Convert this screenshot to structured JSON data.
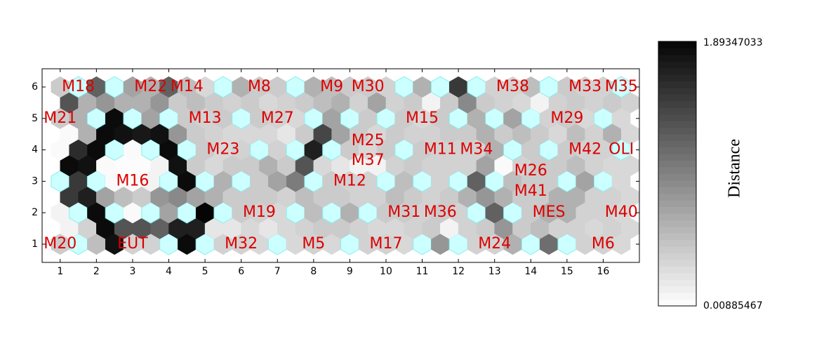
{
  "chart_data": {
    "type": "hexbin_umatrix",
    "xlim": [
      0.5,
      17
    ],
    "ylim": [
      0.42,
      6.58
    ],
    "xticks": [
      1,
      2,
      3,
      4,
      5,
      6,
      7,
      8,
      9,
      10,
      11,
      12,
      13,
      14,
      15,
      16
    ],
    "yticks": [
      1,
      2,
      3,
      4,
      5,
      6
    ],
    "clim": [
      0.00885467,
      1.89347033
    ],
    "colorbar_ticks": [
      1.89347033,
      0.00885467
    ],
    "colorbar_label": "Distance",
    "empty_color": "#ccffff",
    "empty_edge": "#88eeee",
    "label_color": "#dd0000",
    "u_matrix": [
      [
        0.4,
        null,
        0.5,
        1.8,
        0.35,
        0.35,
        null,
        1.85,
        null,
        0.35,
        0.35,
        0.3,
        null,
        0.3,
        0.35,
        0.3,
        null,
        0.35,
        0.35,
        0.3,
        null,
        0.8,
        null,
        0.35,
        0.35,
        0.6,
        null,
        1.1,
        null,
        0.35,
        0.35,
        0.3
      ],
      [
        0.1,
        0.35,
        1.85,
        1.3,
        1.3,
        1.2,
        1.7,
        1.7,
        0.2,
        0.2,
        0.3,
        0.2,
        0.3,
        0.35,
        0.4,
        0.4,
        0.35,
        0.3,
        0.3,
        0.35,
        0.4,
        0.1,
        0.35,
        0.4,
        0.8,
        0.4,
        0.5,
        0.35,
        0.35,
        0.3,
        0.35,
        0.3
      ],
      [
        0.1,
        null,
        1.85,
        null,
        0.05,
        null,
        0.7,
        null,
        1.9,
        null,
        0.4,
        0.35,
        0.3,
        null,
        0.5,
        null,
        0.6,
        null,
        0.4,
        0.4,
        0.35,
        0.4,
        0.35,
        null,
        1.2,
        null,
        0.4,
        0.6,
        0.6,
        0.35,
        0.35,
        0.3
      ],
      [
        1.5,
        1.7,
        0.7,
        0.5,
        0.4,
        0.8,
        0.9,
        0.7,
        0.6,
        0.4,
        0.4,
        0.4,
        0.35,
        0.5,
        0.4,
        0.4,
        0.35,
        0.35,
        0.5,
        0.4,
        0.35,
        0.4,
        0.6,
        0.8,
        0.6,
        0.4,
        0.4,
        0.6,
        0.6,
        0.35,
        0.35,
        0.3
      ],
      [
        null,
        1.5,
        null,
        0.05,
        0.05,
        0.1,
        null,
        1.85,
        null,
        0.6,
        null,
        0.4,
        0.7,
        1.0,
        null,
        0.4,
        0.35,
        0.35,
        null,
        0.5,
        null,
        0.35,
        null,
        1.2,
        null,
        0.5,
        0.4,
        0.4,
        null,
        0.7,
        null,
        0.3
      ],
      [
        1.85,
        1.8,
        0.05,
        0.03,
        0.03,
        0.1,
        1.8,
        0.4,
        0.3,
        0.4,
        0.4,
        0.6,
        0.4,
        1.3,
        0.3,
        0.2,
        0.1,
        0.1,
        0.35,
        0.4,
        0.35,
        0.35,
        0.35,
        0.7,
        0.05,
        0.35,
        0.4,
        0.4,
        0.5,
        0.35,
        0.3,
        0.3
      ],
      [
        0.05,
        1.6,
        1.85,
        null,
        0.05,
        null,
        1.85,
        null,
        0.4,
        0.3,
        0.35,
        null,
        0.35,
        null,
        1.7,
        null,
        0.4,
        0.3,
        0.4,
        null,
        0.4,
        0.35,
        0.35,
        0.35,
        0.6,
        null,
        0.4,
        null,
        0.4,
        0.35,
        0.35,
        null
      ],
      [
        0.05,
        0.6,
        1.85,
        1.8,
        1.75,
        1.8,
        0.8,
        0.4,
        0.35,
        0.3,
        0.3,
        0.3,
        0.2,
        0.4,
        1.4,
        0.7,
        0.4,
        0.3,
        0.4,
        0.35,
        0.35,
        0.4,
        0.4,
        0.6,
        0.4,
        0.5,
        0.4,
        0.3,
        0.5,
        0.35,
        0.6,
        0.3
      ],
      [
        0.4,
        0.6,
        null,
        1.85,
        null,
        0.7,
        null,
        0.4,
        0.35,
        0.4,
        null,
        0.4,
        0.35,
        0.3,
        null,
        0.7,
        null,
        0.4,
        null,
        0.4,
        0.3,
        0.4,
        null,
        0.6,
        null,
        0.7,
        null,
        0.35,
        0.4,
        0.3,
        null,
        0.3
      ],
      [
        1.3,
        0.6,
        0.8,
        0.6,
        0.6,
        0.8,
        0.4,
        0.5,
        0.4,
        0.35,
        0.4,
        0.3,
        0.35,
        0.4,
        0.5,
        0.6,
        0.35,
        0.7,
        0.35,
        0.4,
        0.1,
        0.4,
        0.9,
        0.4,
        0.35,
        0.3,
        0.1,
        0.35,
        0.4,
        0.35,
        0.4,
        0.35
      ],
      [
        0.4,
        null,
        1.2,
        null,
        0.7,
        0.6,
        1.2,
        0.5,
        0.3,
        null,
        0.6,
        0.4,
        0.4,
        null,
        0.6,
        0.5,
        0.4,
        0.4,
        0.35,
        null,
        0.6,
        null,
        1.5,
        null,
        0.35,
        0.35,
        0.5,
        null,
        0.4,
        0.35,
        0.35,
        null
      ]
    ],
    "node_labels": [
      {
        "text": "M18",
        "x": 1.5,
        "y": 6
      },
      {
        "text": "M22",
        "x": 3.5,
        "y": 6
      },
      {
        "text": "M14",
        "x": 4.5,
        "y": 6
      },
      {
        "text": "M8",
        "x": 6.5,
        "y": 6
      },
      {
        "text": "M9",
        "x": 8.5,
        "y": 6
      },
      {
        "text": "M30",
        "x": 9.5,
        "y": 6
      },
      {
        "text": "M38",
        "x": 13.5,
        "y": 6
      },
      {
        "text": "M33",
        "x": 15.5,
        "y": 6
      },
      {
        "text": "M35",
        "x": 16.5,
        "y": 6
      },
      {
        "text": "M21",
        "x": 1,
        "y": 5
      },
      {
        "text": "M13",
        "x": 5,
        "y": 5
      },
      {
        "text": "M27",
        "x": 7,
        "y": 5
      },
      {
        "text": "M15",
        "x": 11,
        "y": 5
      },
      {
        "text": "M29",
        "x": 15,
        "y": 5
      },
      {
        "text": "M23",
        "x": 5.5,
        "y": 4
      },
      {
        "text": "M25",
        "x": 9.5,
        "y": 4.28
      },
      {
        "text": "M37",
        "x": 9.5,
        "y": 3.66
      },
      {
        "text": "M11",
        "x": 11.5,
        "y": 4
      },
      {
        "text": "M34",
        "x": 12.5,
        "y": 4
      },
      {
        "text": "M42",
        "x": 15.5,
        "y": 4
      },
      {
        "text": "OLI",
        "x": 16.5,
        "y": 4
      },
      {
        "text": "M16",
        "x": 3,
        "y": 3
      },
      {
        "text": "M12",
        "x": 9,
        "y": 3
      },
      {
        "text": "M26",
        "x": 14,
        "y": 3.32
      },
      {
        "text": "M41",
        "x": 14,
        "y": 2.67
      },
      {
        "text": "M19",
        "x": 6.5,
        "y": 2
      },
      {
        "text": "M31",
        "x": 10.5,
        "y": 2
      },
      {
        "text": "M36",
        "x": 11.5,
        "y": 2
      },
      {
        "text": "MES",
        "x": 14.5,
        "y": 2
      },
      {
        "text": "M40",
        "x": 16.5,
        "y": 2
      },
      {
        "text": "M20",
        "x": 1,
        "y": 1
      },
      {
        "text": "EUT",
        "x": 3,
        "y": 1
      },
      {
        "text": "M32",
        "x": 6,
        "y": 1
      },
      {
        "text": "M5",
        "x": 8,
        "y": 1
      },
      {
        "text": "M17",
        "x": 10,
        "y": 1
      },
      {
        "text": "M24",
        "x": 13,
        "y": 1
      },
      {
        "text": "M6",
        "x": 16,
        "y": 1
      }
    ]
  }
}
